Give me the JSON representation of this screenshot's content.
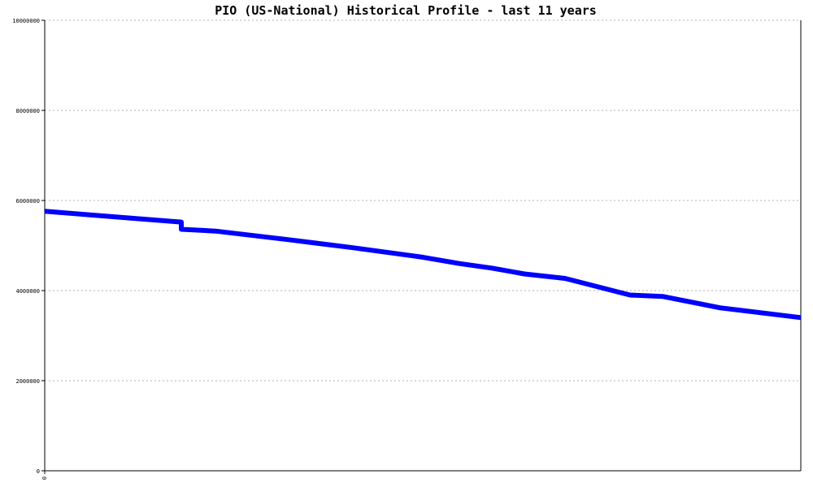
{
  "chart_data": {
    "type": "line",
    "title": "PIO (US-National) Historical Profile - last 11 years",
    "xlabel": "",
    "ylabel": "",
    "ylim": [
      0,
      10000000
    ],
    "x_tick_labels": [
      "0"
    ],
    "y_tick_labels": [
      "0",
      "2000000",
      "4000000",
      "6000000",
      "8000000",
      "10000000"
    ],
    "y_ticks": [
      0,
      2000000,
      4000000,
      6000000,
      8000000,
      10000000
    ],
    "grid": true,
    "legend": "none",
    "series": [
      {
        "color": "#0000ff",
        "values": [
          5760000,
          5640000,
          5520000,
          5360000,
          5320000,
          5130000,
          4950000,
          4740000,
          4600000,
          4500000,
          4370000,
          4270000,
          3900000,
          3870000,
          3620000,
          3400000
        ]
      }
    ],
    "x": [
      0,
      0.0903,
      0.1806,
      0.1806,
      0.2258,
      0.3226,
      0.4086,
      0.5,
      0.5484,
      0.5914,
      0.6344,
      0.6882,
      0.7742,
      0.8172,
      0.8925,
      1.0
    ]
  }
}
